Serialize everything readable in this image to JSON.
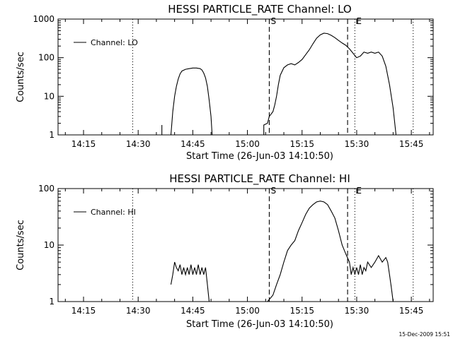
{
  "chart_data": [
    {
      "type": "line",
      "title": "HESSI PARTICLE_RATE Channel: LO",
      "xlabel": "Start Time (26-Jun-03 14:10:50)",
      "ylabel": "Counts/sec",
      "yscale": "log",
      "ylim": [
        1,
        1000
      ],
      "xlim": [
        "14:08",
        "15:51"
      ],
      "x_ticks": [
        "14:15",
        "14:30",
        "14:45",
        "15:00",
        "15:15",
        "15:30",
        "15:45"
      ],
      "y_ticks": [
        "1",
        "10",
        "100",
        "1000"
      ],
      "legend": {
        "placement": "top-left",
        "entries": [
          "Channel: LO"
        ]
      },
      "markers": [
        {
          "label": "S",
          "time": "15:06",
          "style": "dashed"
        },
        {
          "label": "",
          "time": "15:27.5",
          "style": "dashed"
        },
        {
          "label": "E",
          "time": "15:29.5",
          "style": "dotted"
        },
        {
          "label": "",
          "time": "14:28.5",
          "style": "dotted"
        },
        {
          "label": "",
          "time": "15:45.5",
          "style": "dotted"
        }
      ],
      "series": [
        {
          "name": "Channel: LO",
          "segments": [
            [
              [
                "14:36.5",
                1.0
              ],
              [
                "14:36.5",
                1.8
              ]
            ],
            [
              [
                "14:39.0",
                1.0
              ],
              [
                "14:39.5",
                4.0
              ],
              [
                "14:40.0",
                10.0
              ],
              [
                "14:40.5",
                18.0
              ],
              [
                "14:41.0",
                28.0
              ],
              [
                "14:41.5",
                38.0
              ],
              [
                "14:42.0",
                45.0
              ],
              [
                "14:43.0",
                50.0
              ],
              [
                "14:44.0",
                52.0
              ],
              [
                "14:45.0",
                54.0
              ],
              [
                "14:46.0",
                54.0
              ],
              [
                "14:47.0",
                52.0
              ],
              [
                "14:47.5",
                48.0
              ],
              [
                "14:48.0",
                40.0
              ],
              [
                "14:48.5",
                30.0
              ],
              [
                "14:49.0",
                18.0
              ],
              [
                "14:49.5",
                8.0
              ],
              [
                "14:50.0",
                3.0
              ],
              [
                "14:50.3",
                1.0
              ]
            ],
            [
              [
                "15:04.5",
                1.0
              ],
              [
                "15:04.5",
                1.8
              ],
              [
                "15:05.5",
                2.0
              ],
              [
                "15:06.0",
                3.0
              ],
              [
                "15:07.0",
                4.0
              ],
              [
                "15:07.5",
                6.0
              ],
              [
                "15:08.0",
                10.0
              ],
              [
                "15:08.5",
                20.0
              ],
              [
                "15:09.0",
                35.0
              ],
              [
                "15:10.0",
                55.0
              ],
              [
                "15:11.0",
                65.0
              ],
              [
                "15:12.0",
                70.0
              ],
              [
                "15:13.0",
                65.0
              ],
              [
                "15:14.0",
                75.0
              ],
              [
                "15:15.0",
                90.0
              ],
              [
                "15:16.0",
                120.0
              ],
              [
                "15:17.0",
                160.0
              ],
              [
                "15:18.0",
                230.0
              ],
              [
                "15:19.0",
                320.0
              ],
              [
                "15:20.0",
                390.0
              ],
              [
                "15:21.0",
                430.0
              ],
              [
                "15:22.0",
                420.0
              ],
              [
                "15:23.0",
                380.0
              ],
              [
                "15:24.0",
                330.0
              ],
              [
                "15:25.0",
                280.0
              ],
              [
                "15:26.0",
                240.0
              ],
              [
                "15:27.0",
                210.0
              ],
              [
                "15:28.0",
                170.0
              ],
              [
                "15:29.0",
                130.0
              ],
              [
                "15:30.0",
                100.0
              ],
              [
                "15:31.0",
                110.0
              ],
              [
                "15:32.0",
                140.0
              ],
              [
                "15:33.0",
                130.0
              ],
              [
                "15:34.0",
                140.0
              ],
              [
                "15:35.0",
                130.0
              ],
              [
                "15:36.0",
                140.0
              ],
              [
                "15:37.0",
                110.0
              ],
              [
                "15:38.0",
                60.0
              ],
              [
                "15:39.0",
                20.0
              ],
              [
                "15:40.0",
                5.0
              ],
              [
                "15:40.8",
                1.0
              ]
            ]
          ]
        }
      ]
    },
    {
      "type": "line",
      "title": "HESSI PARTICLE_RATE Channel: HI",
      "xlabel": "Start Time (26-Jun-03 14:10:50)",
      "ylabel": "Counts/sec",
      "yscale": "log",
      "ylim": [
        1,
        100
      ],
      "xlim": [
        "14:08",
        "15:51"
      ],
      "x_ticks": [
        "14:15",
        "14:30",
        "14:45",
        "15:00",
        "15:15",
        "15:30",
        "15:45"
      ],
      "y_ticks": [
        "1",
        "10",
        "100"
      ],
      "legend": {
        "placement": "top-left",
        "entries": [
          "Channel: HI"
        ]
      },
      "markers": [
        {
          "label": "S",
          "time": "15:06",
          "style": "dashed"
        },
        {
          "label": "",
          "time": "15:27.5",
          "style": "dashed"
        },
        {
          "label": "E",
          "time": "15:29.5",
          "style": "dotted"
        },
        {
          "label": "",
          "time": "14:28.5",
          "style": "dotted"
        },
        {
          "label": "",
          "time": "15:45.5",
          "style": "dotted"
        }
      ],
      "series": [
        {
          "name": "Channel: HI",
          "segments": [
            [
              [
                "14:39.0",
                2.0
              ],
              [
                "14:39.5",
                3.0
              ],
              [
                "14:40.0",
                5.0
              ],
              [
                "14:40.5",
                4.0
              ],
              [
                "14:41.0",
                3.5
              ],
              [
                "14:41.5",
                4.5
              ],
              [
                "14:42.0",
                3.0
              ],
              [
                "14:42.5",
                4.0
              ],
              [
                "14:43.0",
                3.0
              ],
              [
                "14:43.5",
                4.0
              ],
              [
                "14:44.0",
                3.0
              ],
              [
                "14:44.5",
                4.5
              ],
              [
                "14:45.0",
                3.0
              ],
              [
                "14:45.5",
                4.0
              ],
              [
                "14:46.0",
                3.0
              ],
              [
                "14:46.5",
                4.5
              ],
              [
                "14:47.0",
                3.0
              ],
              [
                "14:47.5",
                4.0
              ],
              [
                "14:48.0",
                3.0
              ],
              [
                "14:48.5",
                4.0
              ],
              [
                "14:49.0",
                2.0
              ],
              [
                "14:49.5",
                1.0
              ]
            ],
            [
              [
                "15:05.5",
                1.0
              ],
              [
                "15:07.0",
                1.3
              ],
              [
                "15:08.0",
                2.0
              ],
              [
                "15:09.0",
                3.0
              ],
              [
                "15:10.0",
                5.0
              ],
              [
                "15:11.0",
                8.0
              ],
              [
                "15:12.0",
                10.0
              ],
              [
                "15:13.0",
                12.0
              ],
              [
                "15:14.0",
                18.0
              ],
              [
                "15:15.0",
                25.0
              ],
              [
                "15:16.0",
                35.0
              ],
              [
                "15:17.0",
                45.0
              ],
              [
                "15:18.0",
                52.0
              ],
              [
                "15:19.0",
                58.0
              ],
              [
                "15:20.0",
                60.0
              ],
              [
                "15:21.0",
                58.0
              ],
              [
                "15:22.0",
                52.0
              ],
              [
                "15:23.0",
                40.0
              ],
              [
                "15:24.0",
                30.0
              ],
              [
                "15:25.0",
                18.0
              ],
              [
                "15:26.0",
                10.0
              ],
              [
                "15:27.0",
                7.0
              ],
              [
                "15:28.0",
                5.0
              ],
              [
                "15:28.5",
                3.0
              ],
              [
                "15:29.0",
                4.0
              ],
              [
                "15:29.5",
                3.0
              ],
              [
                "15:30.0",
                4.0
              ],
              [
                "15:30.5",
                3.0
              ],
              [
                "15:31.0",
                4.5
              ],
              [
                "15:31.5",
                3.0
              ],
              [
                "15:32.0",
                4.0
              ],
              [
                "15:32.5",
                3.5
              ],
              [
                "15:33.0",
                5.0
              ],
              [
                "15:34.0",
                4.0
              ],
              [
                "15:35.0",
                5.0
              ],
              [
                "15:36.0",
                6.5
              ],
              [
                "15:37.0",
                5.0
              ],
              [
                "15:38.0",
                6.0
              ],
              [
                "15:38.5",
                5.0
              ],
              [
                "15:39.0",
                3.0
              ],
              [
                "15:39.5",
                1.8
              ],
              [
                "15:40.0",
                1.0
              ]
            ]
          ]
        }
      ]
    }
  ],
  "footer": {
    "timestamp": "15-Dec-2009 15:51"
  }
}
